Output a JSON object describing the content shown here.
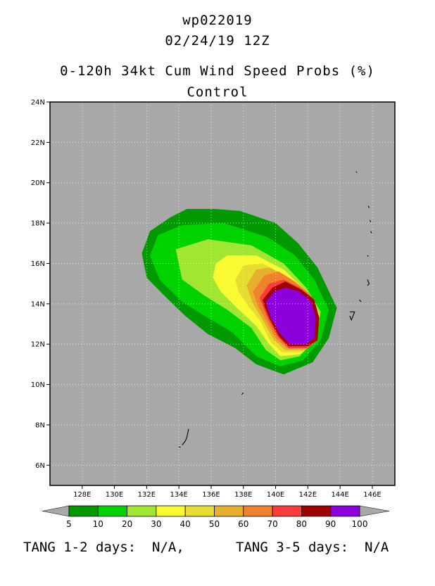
{
  "header": {
    "storm_id": "wp022019",
    "datetime": "02/24/19 12Z",
    "product": "0-120h 34kt Cum Wind Speed Probs (%)",
    "member": "Control"
  },
  "chart_data": {
    "type": "heatmap",
    "title": "0-120h 34kt Cum Wind Speed Probs (%)",
    "subtitle": "Control",
    "x_ticks": [
      "128E",
      "130E",
      "132E",
      "134E",
      "136E",
      "138E",
      "140E",
      "142E",
      "144E",
      "146E"
    ],
    "x_tick_values": [
      128,
      130,
      132,
      134,
      136,
      138,
      140,
      142,
      144,
      146
    ],
    "y_ticks": [
      "6N",
      "8N",
      "10N",
      "12N",
      "14N",
      "16N",
      "18N",
      "20N",
      "22N",
      "24N"
    ],
    "y_tick_values": [
      6,
      8,
      10,
      12,
      14,
      16,
      18,
      20,
      22,
      24
    ],
    "xlim": [
      126.0,
      147.4
    ],
    "ylim": [
      5.0,
      24.0
    ],
    "grid": true,
    "colorbar": {
      "labels": [
        "5",
        "10",
        "20",
        "30",
        "40",
        "50",
        "60",
        "70",
        "80",
        "90",
        "100"
      ],
      "colors": [
        "#009a00",
        "#00d200",
        "#a0e632",
        "#fafa32",
        "#e6dc32",
        "#e6af2d",
        "#f0822d",
        "#fa3c3c",
        "#a00000",
        "#8c00dc"
      ]
    },
    "contours": [
      {
        "level": 5,
        "color": "#009a00",
        "points": [
          [
            131.7,
            16.5
          ],
          [
            132.2,
            17.6
          ],
          [
            133.5,
            18.3
          ],
          [
            134.5,
            18.7
          ],
          [
            136.2,
            18.7
          ],
          [
            137.8,
            18.6
          ],
          [
            140.0,
            18.0
          ],
          [
            141.4,
            17.0
          ],
          [
            142.6,
            15.8
          ],
          [
            143.8,
            13.8
          ],
          [
            143.3,
            12.3
          ],
          [
            142.3,
            11.1
          ],
          [
            140.5,
            10.5
          ],
          [
            138.8,
            11.0
          ],
          [
            137.5,
            11.8
          ],
          [
            135.8,
            12.5
          ],
          [
            134.4,
            13.4
          ],
          [
            133.1,
            14.4
          ],
          [
            132.0,
            15.3
          ]
        ]
      },
      {
        "level": 10,
        "color": "#00d200",
        "points": [
          [
            132.2,
            16.4
          ],
          [
            132.7,
            17.4
          ],
          [
            134.2,
            17.9
          ],
          [
            136.8,
            18.0
          ],
          [
            139.5,
            17.3
          ],
          [
            141.2,
            16.4
          ],
          [
            142.4,
            15.2
          ],
          [
            143.3,
            13.7
          ],
          [
            142.8,
            12.2
          ],
          [
            141.7,
            11.2
          ],
          [
            140.3,
            10.9
          ],
          [
            138.8,
            11.4
          ],
          [
            137.3,
            12.6
          ],
          [
            135.6,
            13.4
          ],
          [
            134.2,
            14.1
          ],
          [
            132.8,
            15.2
          ]
        ]
      },
      {
        "level": 20,
        "color": "#a0e632",
        "points": [
          [
            133.8,
            16.7
          ],
          [
            135.8,
            17.2
          ],
          [
            138.5,
            16.9
          ],
          [
            140.5,
            16.0
          ],
          [
            141.9,
            14.8
          ],
          [
            142.8,
            13.6
          ],
          [
            142.5,
            12.3
          ],
          [
            141.5,
            11.4
          ],
          [
            140.3,
            11.2
          ],
          [
            139.4,
            11.7
          ],
          [
            138.5,
            12.8
          ],
          [
            137.0,
            13.7
          ],
          [
            135.6,
            14.4
          ],
          [
            134.2,
            15.2
          ]
        ]
      },
      {
        "level": 30,
        "color": "#fafa32",
        "points": [
          [
            136.3,
            16.0
          ],
          [
            137.0,
            16.4
          ],
          [
            138.8,
            16.4
          ],
          [
            140.5,
            15.7
          ],
          [
            141.8,
            14.7
          ],
          [
            142.7,
            13.5
          ],
          [
            142.6,
            12.2
          ],
          [
            141.5,
            11.5
          ],
          [
            140.3,
            11.4
          ],
          [
            139.6,
            12.0
          ],
          [
            138.8,
            12.9
          ],
          [
            137.6,
            13.8
          ],
          [
            136.6,
            14.6
          ],
          [
            136.1,
            15.3
          ]
        ]
      },
      {
        "level": 40,
        "color": "#e6dc32",
        "points": [
          [
            137.5,
            15.2
          ],
          [
            138.0,
            15.9
          ],
          [
            139.2,
            16.0
          ],
          [
            140.6,
            15.4
          ],
          [
            141.8,
            14.6
          ],
          [
            142.7,
            13.4
          ],
          [
            142.6,
            12.2
          ],
          [
            141.6,
            11.6
          ],
          [
            140.4,
            11.6
          ],
          [
            139.7,
            12.1
          ],
          [
            139.0,
            13.2
          ],
          [
            138.3,
            13.9
          ],
          [
            137.7,
            14.6
          ]
        ]
      },
      {
        "level": 50,
        "color": "#e6af2d",
        "points": [
          [
            138.2,
            14.9
          ],
          [
            138.8,
            15.7
          ],
          [
            139.6,
            15.8
          ],
          [
            140.8,
            15.3
          ],
          [
            141.9,
            14.6
          ],
          [
            142.7,
            13.4
          ],
          [
            142.6,
            12.2
          ],
          [
            141.8,
            11.7
          ],
          [
            140.6,
            11.7
          ],
          [
            139.9,
            12.2
          ],
          [
            139.2,
            13.2
          ],
          [
            138.6,
            14.0
          ]
        ]
      },
      {
        "level": 60,
        "color": "#f0822d",
        "points": [
          [
            138.6,
            14.6
          ],
          [
            139.3,
            15.4
          ],
          [
            140.2,
            15.6
          ],
          [
            141.2,
            15.1
          ],
          [
            142.1,
            14.5
          ],
          [
            142.7,
            13.4
          ],
          [
            142.6,
            12.2
          ],
          [
            141.9,
            11.8
          ],
          [
            140.7,
            11.8
          ],
          [
            140.0,
            12.3
          ],
          [
            139.4,
            13.2
          ],
          [
            138.9,
            13.9
          ]
        ]
      },
      {
        "level": 70,
        "color": "#fa3c3c",
        "points": [
          [
            139.0,
            14.3
          ],
          [
            139.6,
            15.0
          ],
          [
            140.5,
            15.2
          ],
          [
            141.5,
            14.8
          ],
          [
            142.3,
            14.3
          ],
          [
            142.7,
            13.3
          ],
          [
            142.6,
            12.2
          ],
          [
            142.0,
            11.8
          ],
          [
            140.8,
            11.8
          ],
          [
            140.1,
            12.4
          ],
          [
            139.5,
            13.3
          ],
          [
            139.2,
            13.9
          ]
        ]
      },
      {
        "level": 80,
        "color": "#a00000",
        "points": [
          [
            139.2,
            14.2
          ],
          [
            139.8,
            14.8
          ],
          [
            140.6,
            15.1
          ],
          [
            141.6,
            14.7
          ],
          [
            142.4,
            14.2
          ],
          [
            142.7,
            13.3
          ],
          [
            142.6,
            12.2
          ],
          [
            142.0,
            11.9
          ],
          [
            140.8,
            11.9
          ],
          [
            140.2,
            12.4
          ],
          [
            139.6,
            13.3
          ],
          [
            139.3,
            13.9
          ]
        ]
      },
      {
        "level": 90,
        "color": "#8c00dc",
        "points": [
          [
            139.4,
            14.1
          ],
          [
            139.9,
            14.6
          ],
          [
            140.6,
            14.8
          ],
          [
            141.5,
            14.6
          ],
          [
            142.2,
            14.1
          ],
          [
            142.5,
            13.3
          ],
          [
            142.4,
            12.3
          ],
          [
            141.9,
            12.0
          ],
          [
            140.9,
            12.0
          ],
          [
            140.3,
            12.5
          ],
          [
            139.7,
            13.3
          ],
          [
            139.5,
            13.8
          ]
        ]
      }
    ],
    "islands": [
      [
        [
          145.0,
          20.55
        ],
        [
          145.05,
          20.5
        ]
      ],
      [
        [
          145.75,
          18.85
        ],
        [
          145.8,
          18.75
        ]
      ],
      [
        [
          145.85,
          18.15
        ],
        [
          145.9,
          18.05
        ]
      ],
      [
        [
          145.9,
          17.6
        ],
        [
          145.95,
          17.5
        ]
      ],
      [
        [
          145.7,
          16.4
        ],
        [
          145.75,
          16.35
        ]
      ],
      [
        [
          145.7,
          15.2
        ],
        [
          145.8,
          15.0
        ],
        [
          145.7,
          14.9
        ]
      ],
      [
        [
          145.2,
          14.2
        ],
        [
          145.3,
          14.1
        ]
      ],
      [
        [
          144.6,
          13.6
        ],
        [
          144.9,
          13.6
        ],
        [
          144.7,
          13.2
        ],
        [
          144.6,
          13.4
        ]
      ],
      [
        [
          137.9,
          9.5
        ],
        [
          138.0,
          9.6
        ]
      ],
      [
        [
          134.6,
          7.8
        ],
        [
          134.5,
          7.4
        ],
        [
          134.4,
          7.2
        ],
        [
          134.2,
          7.0
        ]
      ],
      [
        [
          134.1,
          6.9
        ],
        [
          134.0,
          6.9
        ]
      ]
    ]
  },
  "footer": {
    "tang_12": "TANG 1-2 days:  N/A,",
    "tang_35": "TANG 3-5 days:  N/A"
  }
}
